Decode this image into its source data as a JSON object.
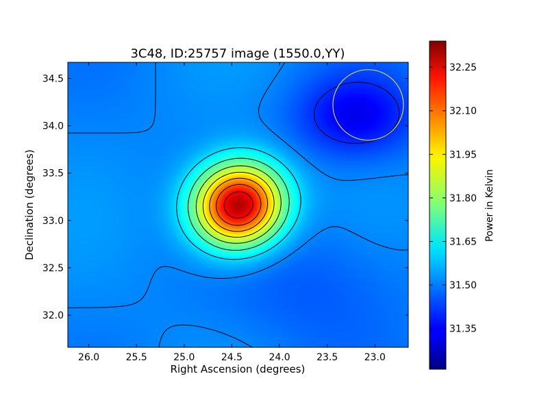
{
  "chart_data": {
    "type": "heatmap",
    "title": "3C48, ID:25757 image (1550.0,YY)",
    "xlabel": "Right Ascension (degrees)",
    "ylabel": "Declination (degrees)",
    "xlim": [
      26.22,
      22.65
    ],
    "ylim": [
      31.66,
      34.67
    ],
    "xticks": [
      26.0,
      25.5,
      25.0,
      24.5,
      24.0,
      23.5,
      23.0
    ],
    "xtick_labels": [
      "26.0",
      "25.5",
      "25.0",
      "24.5",
      "24.0",
      "23.5",
      "23.0"
    ],
    "yticks": [
      32.0,
      32.5,
      33.0,
      33.5,
      34.0,
      34.5
    ],
    "ytick_labels": [
      "32.0",
      "32.5",
      "33.0",
      "33.5",
      "34.0",
      "34.5"
    ],
    "colorbar": {
      "label": "Power in Kelvin",
      "range": [
        31.21,
        32.34
      ],
      "ticks": [
        31.35,
        31.5,
        31.65,
        31.8,
        31.95,
        32.1,
        32.25
      ],
      "tick_labels": [
        "31.35",
        "31.50",
        "31.65",
        "31.80",
        "31.95",
        "32.10",
        "32.25"
      ],
      "colormap": "jet"
    },
    "sources": [
      {
        "ra": 24.43,
        "dec": 33.16,
        "peak": 32.31,
        "sigma_ra": 0.33,
        "sigma_dec": 0.3
      },
      {
        "ra": 23.2,
        "dec": 34.1,
        "peak": -0.16,
        "sigma_ra": 0.45,
        "sigma_dec": 0.3
      },
      {
        "ra": 23.6,
        "dec": 32.3,
        "peak": -0.05,
        "sigma_ra": 0.7,
        "sigma_dec": 0.5
      }
    ],
    "background_level": 31.5,
    "contour_levels": [
      31.4,
      31.5,
      31.6,
      31.7,
      31.8,
      31.9,
      32.0,
      32.1,
      32.2,
      32.3
    ],
    "beam": {
      "ra": 23.07,
      "dec": 34.22,
      "radius_deg": 0.37,
      "color": "#d4d44a"
    },
    "grid": false
  }
}
